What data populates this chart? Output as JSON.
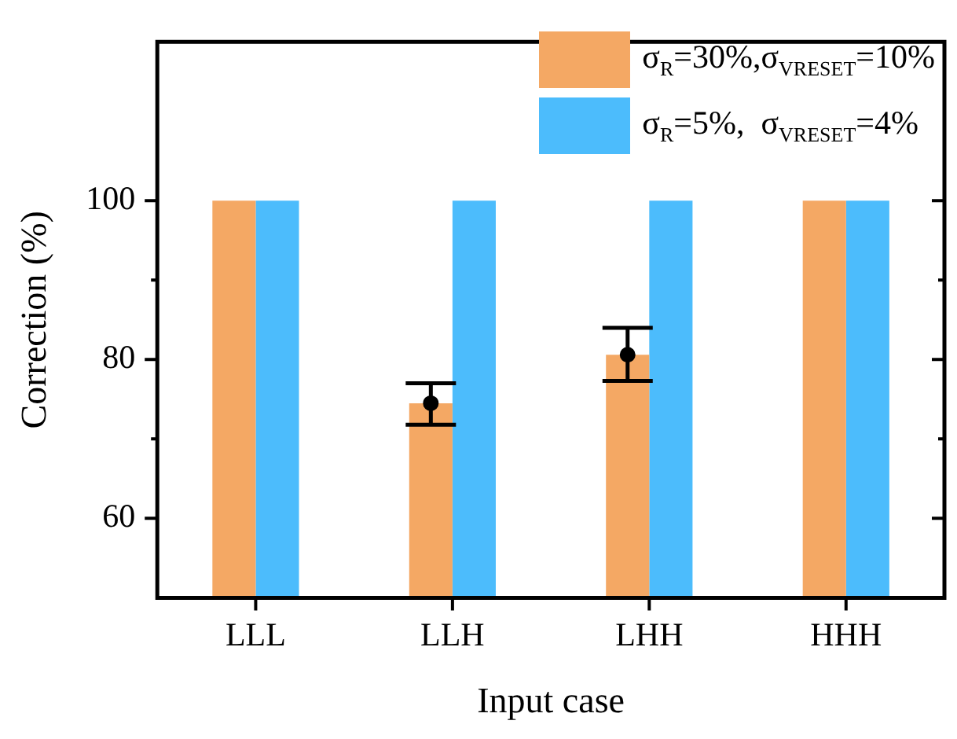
{
  "chart_data": {
    "type": "bar",
    "xlabel": "Input case",
    "ylabel": "Correction (%)",
    "categories": [
      "LLL",
      "LLH",
      "LHH",
      "HHH"
    ],
    "series": [
      {
        "name": "σ$_{R}$=30%,σ$_{VRESET}$=10%",
        "color": "#f4a864",
        "values": [
          100,
          74.5,
          80.6,
          100
        ]
      },
      {
        "type": "scatter",
        "x": [
          "LLH",
          "LHH"
        ],
        "color": "#000000",
        "marker": "circle",
        "values": [
          74.5,
          80.6
        ],
        "errors": [
          [
            71.8,
            77
          ],
          [
            77.3,
            84
          ]
        ]
      },
      {
        "name": "σ$_{R}$=5%,  σ$_{VRESET}$=4%",
        "color": "#4cbcfc",
        "values": [
          100,
          100,
          100,
          100
        ]
      }
    ],
    "ylim": [
      50,
      120
    ],
    "yticks": [
      60,
      80,
      100
    ],
    "grid": false,
    "legend": "top right"
  }
}
